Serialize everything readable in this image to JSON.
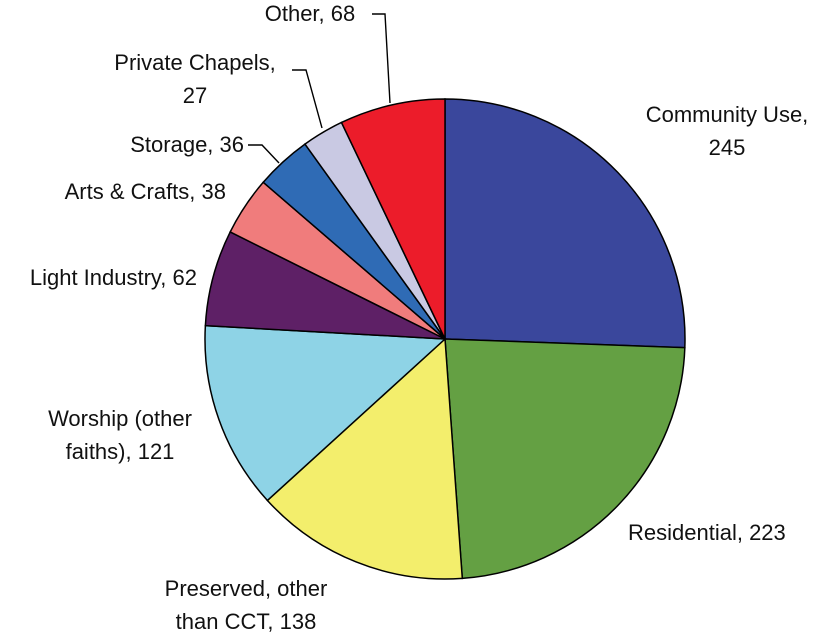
{
  "chart_data": {
    "type": "pie",
    "title": "",
    "start": "12 o'clock, clockwise",
    "slices": [
      {
        "label": "Community Use",
        "value": 245,
        "color": "#3A479C",
        "text": [
          "Community Use,",
          "245"
        ]
      },
      {
        "label": "Residential",
        "value": 223,
        "color": "#64A043",
        "text": [
          "Residential, 223"
        ]
      },
      {
        "label": "Preserved, other than CCT",
        "value": 138,
        "color": "#F3EE6C",
        "text": [
          "Preserved, other",
          "than CCT, 138"
        ]
      },
      {
        "label": "Worship (other faiths)",
        "value": 121,
        "color": "#8ED3E6",
        "text": [
          "Worship (other",
          "faiths), 121"
        ]
      },
      {
        "label": "Light Industry",
        "value": 62,
        "color": "#5E2066",
        "text": [
          "Light Industry, 62"
        ]
      },
      {
        "label": "Arts & Crafts",
        "value": 38,
        "color": "#F07C7C",
        "text": [
          "Arts & Crafts, 38"
        ]
      },
      {
        "label": "Storage",
        "value": 36,
        "color": "#2F6BB5",
        "text": [
          "Storage, 36"
        ]
      },
      {
        "label": "Private Chapels",
        "value": 27,
        "color": "#C9C9E3",
        "text": [
          "Private Chapels,",
          "27"
        ]
      },
      {
        "label": "Other",
        "value": 68,
        "color": "#EC1C2A",
        "text": [
          "Other, 68"
        ]
      }
    ]
  }
}
